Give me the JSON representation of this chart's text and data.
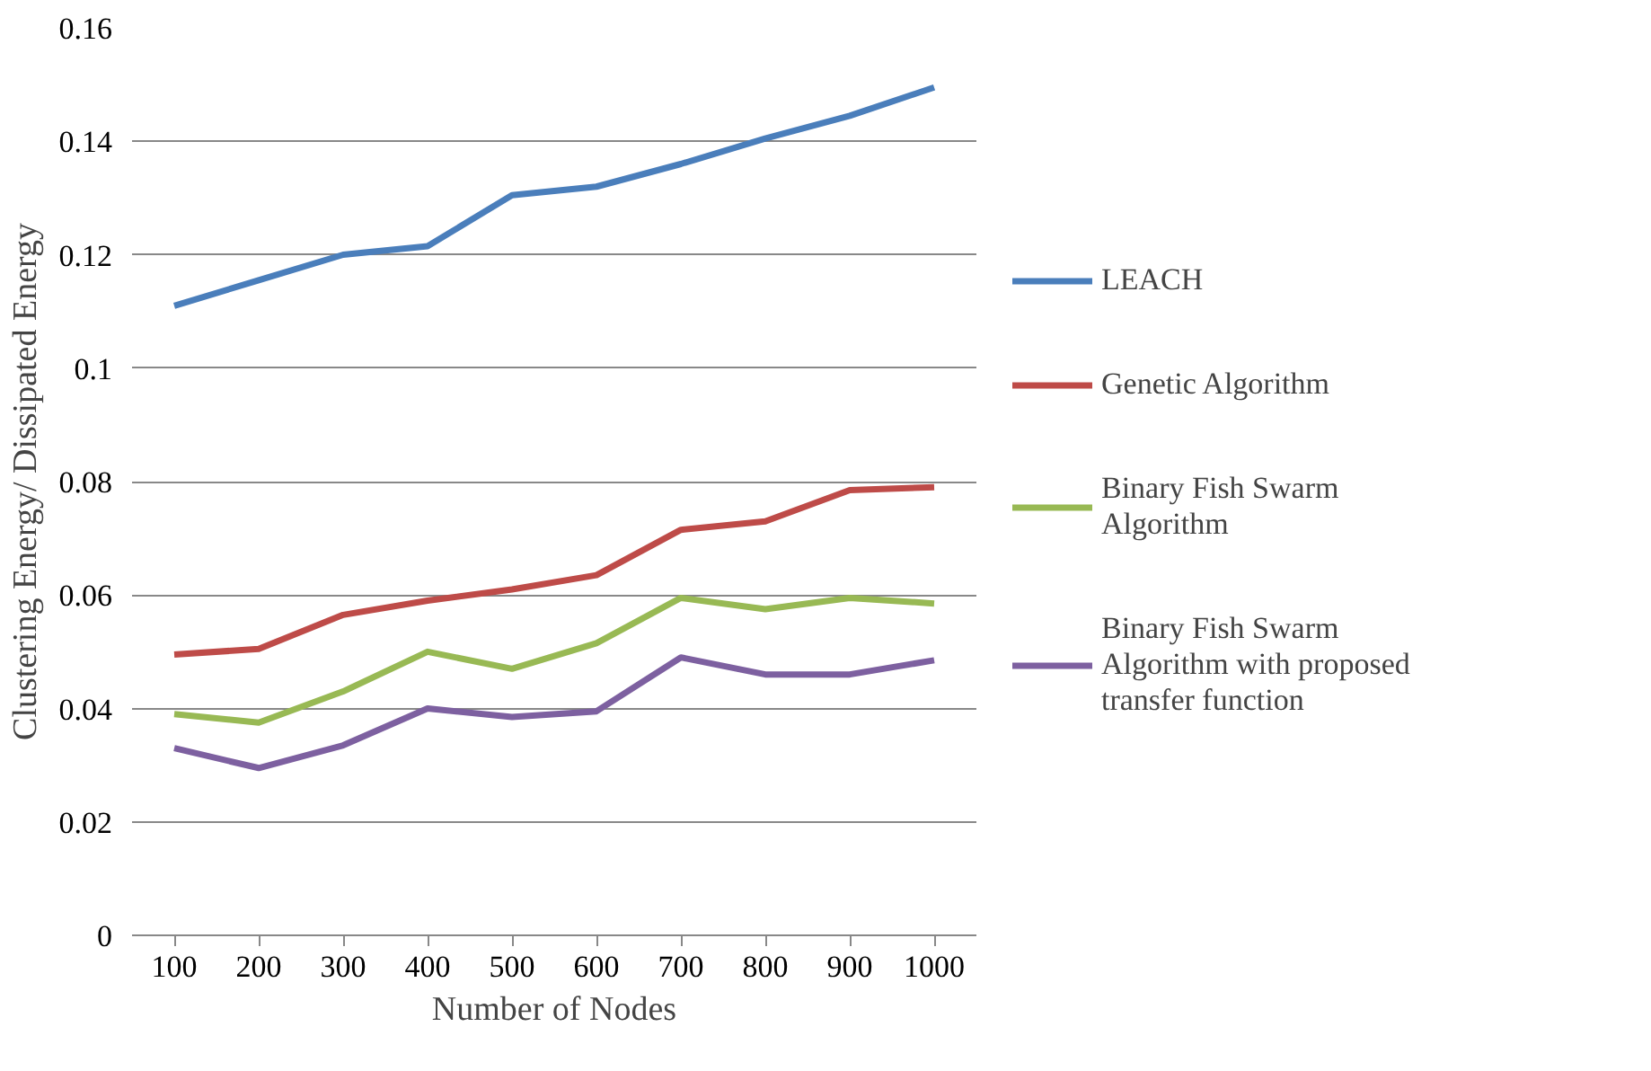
{
  "chart_data": {
    "type": "line",
    "xlabel": "Number of Nodes",
    "ylabel": "Clustering Energy/ Dissipated Energy",
    "categories": [
      "100",
      "200",
      "300",
      "400",
      "500",
      "600",
      "700",
      "800",
      "900",
      "1000"
    ],
    "ylim": [
      0,
      0.16
    ],
    "yticks": [
      0,
      0.02,
      0.04,
      0.06,
      0.08,
      0.1,
      0.12,
      0.14,
      0.16
    ],
    "grid": "y",
    "legend": "right",
    "series": [
      {
        "name": "LEACH",
        "color": "#4a7ebb",
        "values": [
          0.111,
          0.1155,
          0.12,
          0.1215,
          0.1305,
          0.132,
          0.136,
          0.1405,
          0.1445,
          0.1495
        ]
      },
      {
        "name": "Genetic Algorithm",
        "color": "#be4b48",
        "values": [
          0.0495,
          0.0505,
          0.0565,
          0.059,
          0.061,
          0.0635,
          0.0715,
          0.073,
          0.0785,
          0.079
        ]
      },
      {
        "name": "Binary Fish Swarm Algorithm",
        "color": "#98b954",
        "values": [
          0.039,
          0.0375,
          0.043,
          0.05,
          0.047,
          0.0515,
          0.0595,
          0.0575,
          0.0595,
          0.0585
        ]
      },
      {
        "name": "Binary Fish Swarm Algorithm with proposed transfer function",
        "color": "#7d60a0",
        "values": [
          0.033,
          0.0295,
          0.0335,
          0.04,
          0.0385,
          0.0395,
          0.049,
          0.046,
          0.046,
          0.0485
        ]
      }
    ]
  }
}
